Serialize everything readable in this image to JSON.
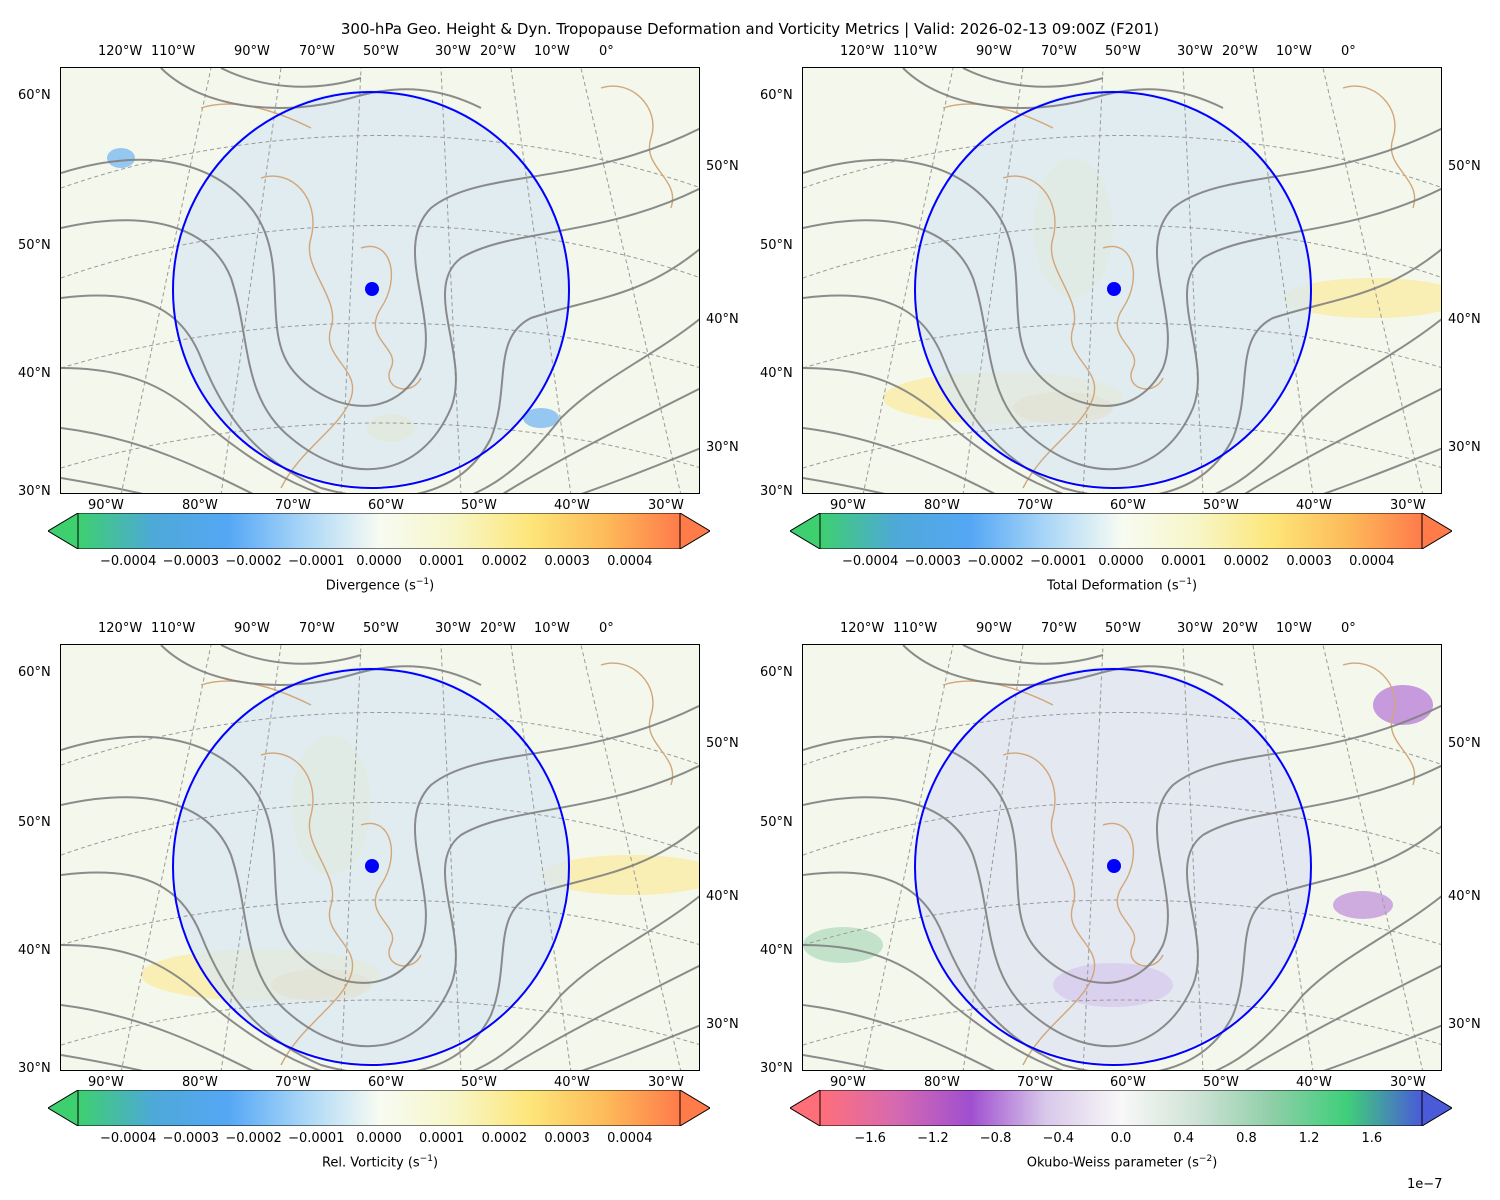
{
  "title": "300-hPa Geo. Height & Dyn. Tropopause Deformation and Vorticity Metrics |  Valid: 2026-02-13 09:00Z (F201)",
  "map": {
    "top_lon_labels": [
      "120°W",
      "110°W",
      "90°W",
      "70°W",
      "50°W",
      "30°W",
      "20°W",
      "10°W",
      "0°"
    ],
    "bottom_lon_labels": [
      "90°W",
      "80°W",
      "70°W",
      "60°W",
      "50°W",
      "40°W",
      "30°W"
    ],
    "left_lat_labels": [
      "60°N",
      "50°N",
      "40°N",
      "30°N"
    ],
    "right_lat_labels": [
      "50°N",
      "40°N",
      "30°N"
    ],
    "center_marker_color": "#0000ff",
    "circle_color": "#0000ff",
    "contour_color": "#808080",
    "coast_color": "#d2a679"
  },
  "panels": [
    {
      "id": "divergence",
      "cbar_label": "Divergence (s",
      "cbar_unit_exp": "−1",
      "cbar_label_end": ")",
      "ticks": [
        "−0.0004",
        "−0.0003",
        "−0.0002",
        "−0.0001",
        "0.0000",
        "0.0001",
        "0.0002",
        "0.0003",
        "0.0004"
      ],
      "tick_values": [
        -0.0004,
        -0.0003,
        -0.0002,
        -0.0001,
        0,
        0.0001,
        0.0002,
        0.0003,
        0.0004
      ],
      "range": [
        -0.00048,
        0.00048
      ],
      "colormap": [
        "#3ecf6f",
        "#4ea9d8",
        "#55a7f5",
        "#a9d6f7",
        "#f7fbf2",
        "#f7f6c8",
        "#fde67a",
        "#fdbb5a",
        "#ff7b4a"
      ],
      "multiplier": ""
    },
    {
      "id": "total-deformation",
      "cbar_label": "Total Deformation (s",
      "cbar_unit_exp": "−1",
      "cbar_label_end": ")",
      "ticks": [
        "−0.0004",
        "−0.0003",
        "−0.0002",
        "−0.0001",
        "0.0000",
        "0.0001",
        "0.0002",
        "0.0003",
        "0.0004"
      ],
      "tick_values": [
        -0.0004,
        -0.0003,
        -0.0002,
        -0.0001,
        0,
        0.0001,
        0.0002,
        0.0003,
        0.0004
      ],
      "range": [
        -0.00048,
        0.00048
      ],
      "colormap": [
        "#3ecf6f",
        "#4ea9d8",
        "#55a7f5",
        "#a9d6f7",
        "#f7fbf2",
        "#f7f6c8",
        "#fde67a",
        "#fdbb5a",
        "#ff7b4a"
      ],
      "multiplier": ""
    },
    {
      "id": "relative-vorticity",
      "cbar_label": "Rel. Vorticity (s",
      "cbar_unit_exp": "−1",
      "cbar_label_end": ")",
      "ticks": [
        "−0.0004",
        "−0.0003",
        "−0.0002",
        "−0.0001",
        "0.0000",
        "0.0001",
        "0.0002",
        "0.0003",
        "0.0004"
      ],
      "tick_values": [
        -0.0004,
        -0.0003,
        -0.0002,
        -0.0001,
        0,
        0.0001,
        0.0002,
        0.0003,
        0.0004
      ],
      "range": [
        -0.00048,
        0.00048
      ],
      "colormap": [
        "#3ecf6f",
        "#4ea9d8",
        "#55a7f5",
        "#a9d6f7",
        "#f7fbf2",
        "#f7f6c8",
        "#fde67a",
        "#fdbb5a",
        "#ff7b4a"
      ],
      "multiplier": ""
    },
    {
      "id": "okubo-weiss",
      "cbar_label": "Okubo-Weiss parameter (s",
      "cbar_unit_exp": "−2",
      "cbar_label_end": ")",
      "ticks": [
        "−1.6",
        "−1.2",
        "−0.8",
        "−0.4",
        "0.0",
        "0.4",
        "0.8",
        "1.2",
        "1.6"
      ],
      "tick_values": [
        -1.6,
        -1.2,
        -0.8,
        -0.4,
        0,
        0.4,
        0.8,
        1.2,
        1.6
      ],
      "range": [
        -1.92,
        1.92
      ],
      "colormap": [
        "#ff6f7a",
        "#d66ab0",
        "#a04fd0",
        "#d8c8ea",
        "#f8f8f8",
        "#cfe3d6",
        "#8fcfa8",
        "#3fcf7a",
        "#4a5ad8"
      ],
      "multiplier": "1e−7"
    }
  ]
}
